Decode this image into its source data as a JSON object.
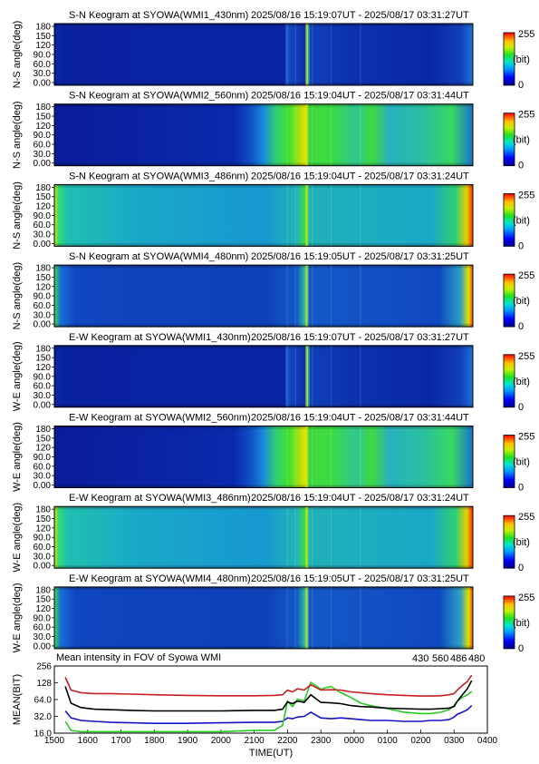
{
  "keograms": [
    {
      "title": "S-N Keogram at SYOWA(WMI1_430nm)",
      "time_range": "2025/08/16 15:19:07UT - 2025/08/17 03:31:27UT",
      "ylabel": "N-S angle(deg)",
      "profile": "blue430"
    },
    {
      "title": "S-N Keogram at SYOWA(WMI2_560nm)",
      "time_range": "2025/08/16 15:19:04UT - 2025/08/17 03:31:44UT",
      "ylabel": "N-S angle(deg)",
      "profile": "green560"
    },
    {
      "title": "S-N Keogram at SYOWA(WMI3_486nm)",
      "time_range": "2025/08/16 15:19:04UT - 2025/08/17 03:31:24UT",
      "ylabel": "N-S angle(deg)",
      "profile": "hbeta486"
    },
    {
      "title": "S-N Keogram at SYOWA(WMI4_480nm)",
      "time_range": "2025/08/16 15:19:05UT - 2025/08/17 03:31:25UT",
      "ylabel": "N-S angle(deg)",
      "profile": "bg480"
    },
    {
      "title": "E-W Keogram at SYOWA(WMI1_430nm)",
      "time_range": "2025/08/16 15:19:07UT - 2025/08/17 03:31:27UT",
      "ylabel": "W-E angle(deg)",
      "profile": "blue430"
    },
    {
      "title": "E-W Keogram at SYOWA(WMI2_560nm)",
      "time_range": "2025/08/16 15:19:04UT - 2025/08/17 03:31:44UT",
      "ylabel": "W-E angle(deg)",
      "profile": "green560"
    },
    {
      "title": "E-W Keogram at SYOWA(WMI3_486nm)",
      "time_range": "2025/08/16 15:19:04UT - 2025/08/17 03:31:24UT",
      "ylabel": "W-E angle(deg)",
      "profile": "hbeta486"
    },
    {
      "title": "E-W Keogram at SYOWA(WMI4_480nm)",
      "time_range": "2025/08/16 15:19:05UT - 2025/08/17 03:31:25UT",
      "ylabel": "W-E angle(deg)",
      "profile": "bg480"
    }
  ],
  "angle_ticks": [
    "180",
    "150",
    "120",
    "90.0",
    "60.0",
    "30.0",
    "0.00"
  ],
  "colorbar": {
    "max": "255",
    "unit": "(bit)",
    "min": "0"
  },
  "chart_data": {
    "type": "line",
    "title": "Mean intensity in FOV of Syowa WMI",
    "xlabel": "TIME(UT)",
    "ylabel": "MEAN(BIT)",
    "x_ticks": [
      "1500",
      "1600",
      "1700",
      "1800",
      "1900",
      "2000",
      "2100",
      "2200",
      "2300",
      "0000",
      "0100",
      "0200",
      "0300",
      "0400"
    ],
    "y_ticks": [
      "256",
      "128",
      "64.0",
      "32.0",
      "16.0"
    ],
    "y_scale": "log",
    "ylim": [
      16,
      256
    ],
    "x_hours": [
      15.33,
      15.5,
      15.8,
      16.2,
      16.7,
      17.3,
      18.0,
      19.0,
      20.0,
      21.0,
      21.6,
      21.85,
      22.0,
      22.15,
      22.3,
      22.5,
      22.7,
      23.0,
      23.3,
      23.6,
      23.9,
      24.2,
      24.5,
      25.0,
      25.5,
      26.0,
      26.3,
      26.6,
      26.85,
      27.0,
      27.1,
      27.25,
      27.4,
      27.53
    ],
    "series": [
      {
        "name": "430",
        "color": "#1414c8",
        "values": [
          40,
          30,
          27,
          26,
          25,
          24.5,
          24,
          24,
          24.5,
          25,
          25,
          26,
          30,
          29,
          31,
          32,
          38,
          30,
          29,
          30,
          29,
          28,
          27,
          27,
          26,
          26,
          27,
          27,
          28,
          31,
          35,
          38,
          42,
          50
        ]
      },
      {
        "name": "560",
        "color": "#28c828",
        "values": [
          26,
          18,
          17,
          17,
          17,
          17,
          17,
          17,
          17,
          18,
          18,
          22,
          60,
          48,
          65,
          60,
          130,
          98,
          110,
          85,
          70,
          55,
          50,
          44,
          38,
          36,
          36,
          38,
          42,
          50,
          60,
          70,
          78,
          90
        ]
      },
      {
        "name": "486",
        "color": "#c81e1e",
        "values": [
          160,
          95,
          85,
          82,
          82,
          80,
          78,
          76,
          75,
          75,
          76,
          78,
          95,
          88,
          100,
          95,
          118,
          95,
          96,
          95,
          88,
          85,
          82,
          78,
          76,
          74,
          74,
          75,
          78,
          82,
          95,
          115,
          135,
          175
        ]
      },
      {
        "name": "480",
        "color": "#000000",
        "values": [
          110,
          55,
          46,
          43,
          42,
          41,
          40,
          40,
          40,
          41,
          41,
          43,
          58,
          54,
          60,
          57,
          78,
          57,
          56,
          54,
          50,
          48,
          47,
          45,
          44,
          43,
          43,
          44,
          45,
          48,
          60,
          78,
          100,
          140
        ]
      }
    ],
    "legend_position": "top-right"
  }
}
